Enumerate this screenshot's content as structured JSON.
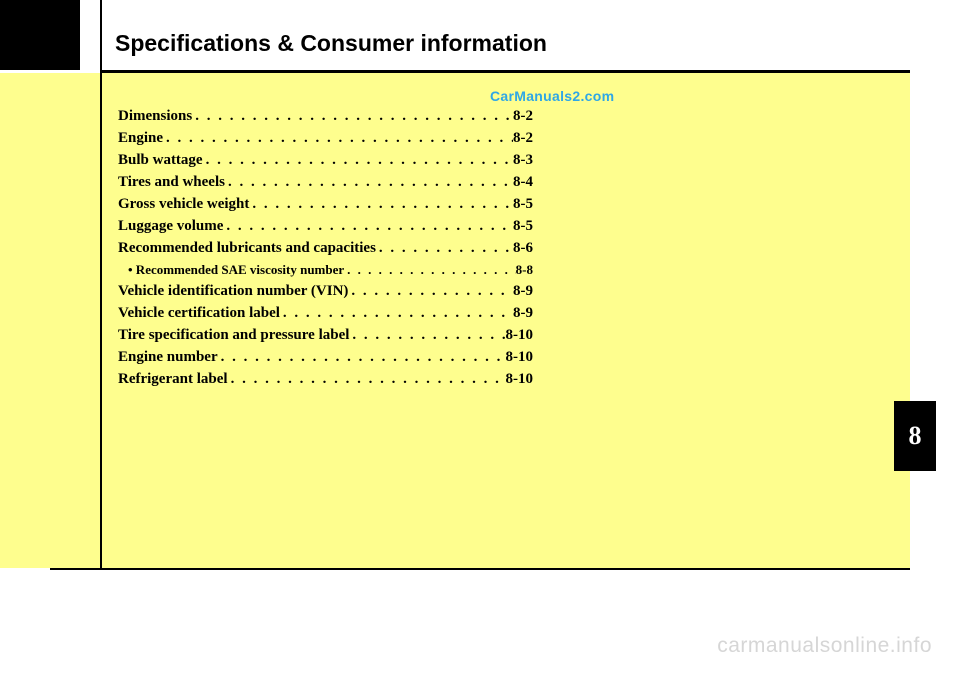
{
  "chapter": {
    "title": "Specifications & Consumer information",
    "number": "8"
  },
  "watermarks": {
    "top": "CarManuals2.com",
    "bottom": "carmanualsonline.info"
  },
  "toc": [
    {
      "label": "Dimensions",
      "page": "8-2",
      "sub": false
    },
    {
      "label": "Engine",
      "page": "8-2",
      "sub": false
    },
    {
      "label": "Bulb wattage",
      "page": "8-3",
      "sub": false
    },
    {
      "label": "Tires and wheels",
      "page": "8-4",
      "sub": false
    },
    {
      "label": "Gross vehicle weight",
      "page": "8-5",
      "sub": false
    },
    {
      "label": "Luggage volume",
      "page": "8-5",
      "sub": false
    },
    {
      "label": "Recommended lubricants and capacities",
      "page": "8-6",
      "sub": false
    },
    {
      "label": "• Recommended SAE viscosity number",
      "page": "8-8",
      "sub": true
    },
    {
      "label": "Vehicle identification number (VIN)",
      "page": "8-9",
      "sub": false
    },
    {
      "label": "Vehicle certification label",
      "page": "8-9",
      "sub": false
    },
    {
      "label": "Tire specification and pressure label",
      "page": "8-10",
      "sub": false
    },
    {
      "label": "Engine number",
      "page": "8-10",
      "sub": false
    },
    {
      "label": "Refrigerant label",
      "page": "8-10",
      "sub": false
    }
  ],
  "colors": {
    "panel": "#fefe8e",
    "watermark_top": "#2fa7e6",
    "watermark_bottom": "#d6d6d6",
    "text": "#000000",
    "bg": "#ffffff"
  }
}
